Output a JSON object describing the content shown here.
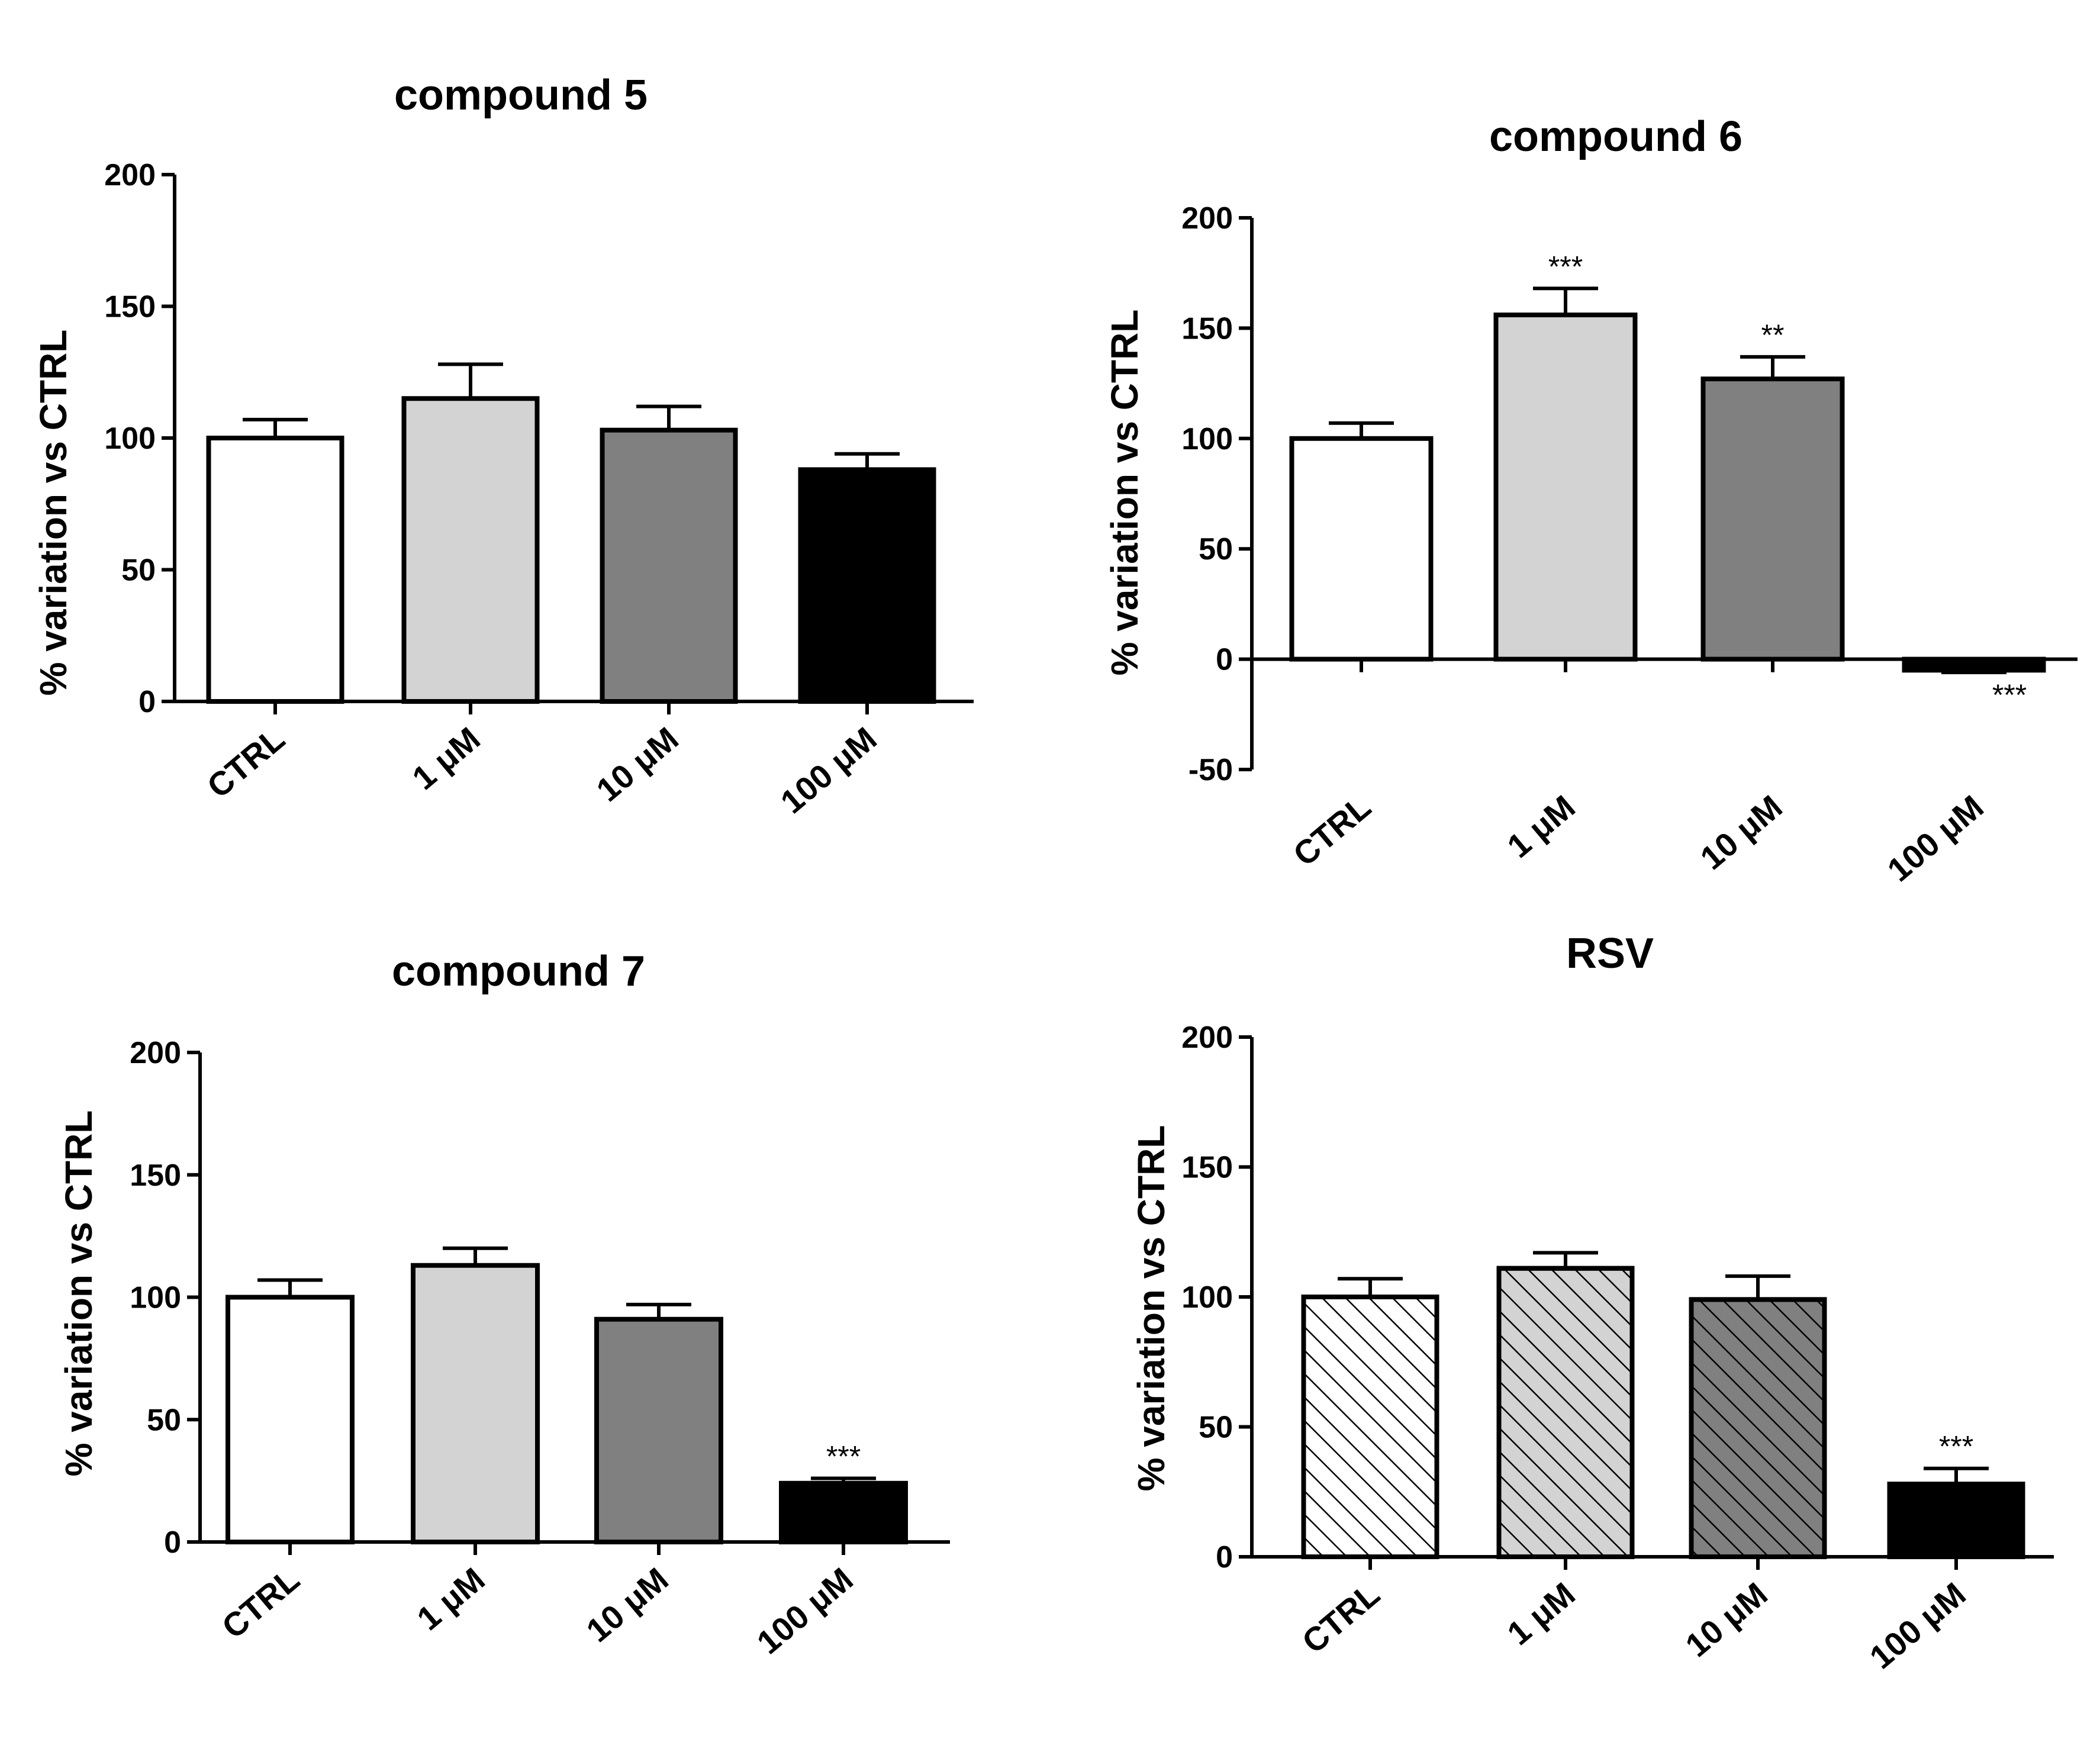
{
  "figure": {
    "charts": [
      {
        "type": "bar",
        "title": "compound 5",
        "ylabel": "% variation vs CTRL",
        "xlabel": "",
        "ylim": [
          0,
          200
        ],
        "yticks": [
          0,
          50,
          100,
          150,
          200
        ],
        "categories": [
          "CTRL",
          "1 μM",
          "10 μM",
          "100 μM"
        ],
        "values": [
          100,
          115,
          103,
          88
        ],
        "errors": [
          7,
          13,
          9,
          6
        ],
        "significance": [
          "",
          "",
          "",
          ""
        ],
        "fills": [
          "#ffffff",
          "#d3d3d3",
          "#808080",
          "#000000"
        ],
        "hatched": false
      },
      {
        "type": "bar",
        "title": "compound 6",
        "ylabel": "% variation vs CTRL",
        "xlabel": "",
        "ylim": [
          -50,
          200
        ],
        "yticks": [
          -50,
          0,
          50,
          100,
          150,
          200
        ],
        "categories": [
          "CTRL",
          "1 μM",
          "10 μM",
          "100 μM"
        ],
        "values": [
          100,
          156,
          127,
          -5
        ],
        "errors": [
          7,
          12,
          10,
          1
        ],
        "significance": [
          "",
          "***",
          "**",
          "***"
        ],
        "fills": [
          "#ffffff",
          "#d3d3d3",
          "#808080",
          "#000000"
        ],
        "hatched": false
      },
      {
        "type": "bar",
        "title": "compound 7",
        "ylabel": "% variation vs CTRL",
        "xlabel": "",
        "ylim": [
          0,
          200
        ],
        "yticks": [
          0,
          50,
          100,
          150,
          200
        ],
        "categories": [
          "CTRL",
          "1 μM",
          "10 μM",
          "100 μM"
        ],
        "values": [
          100,
          113,
          91,
          24
        ],
        "errors": [
          7,
          7,
          6,
          2
        ],
        "significance": [
          "",
          "",
          "",
          "***"
        ],
        "fills": [
          "#ffffff",
          "#d3d3d3",
          "#808080",
          "#000000"
        ],
        "hatched": false
      },
      {
        "type": "bar",
        "title": "RSV",
        "ylabel": "% variation vs CTRL",
        "xlabel": "",
        "ylim": [
          0,
          200
        ],
        "yticks": [
          0,
          50,
          100,
          150,
          200
        ],
        "categories": [
          "CTRL",
          "1 μM",
          "10 μM",
          "100 μM"
        ],
        "values": [
          100,
          111,
          99,
          28
        ],
        "errors": [
          7,
          6,
          9,
          6
        ],
        "significance": [
          "",
          "",
          "",
          "***"
        ],
        "fills": [
          "#ffffff",
          "#d3d3d3",
          "#808080",
          "#000000"
        ],
        "hatched": true
      }
    ]
  }
}
